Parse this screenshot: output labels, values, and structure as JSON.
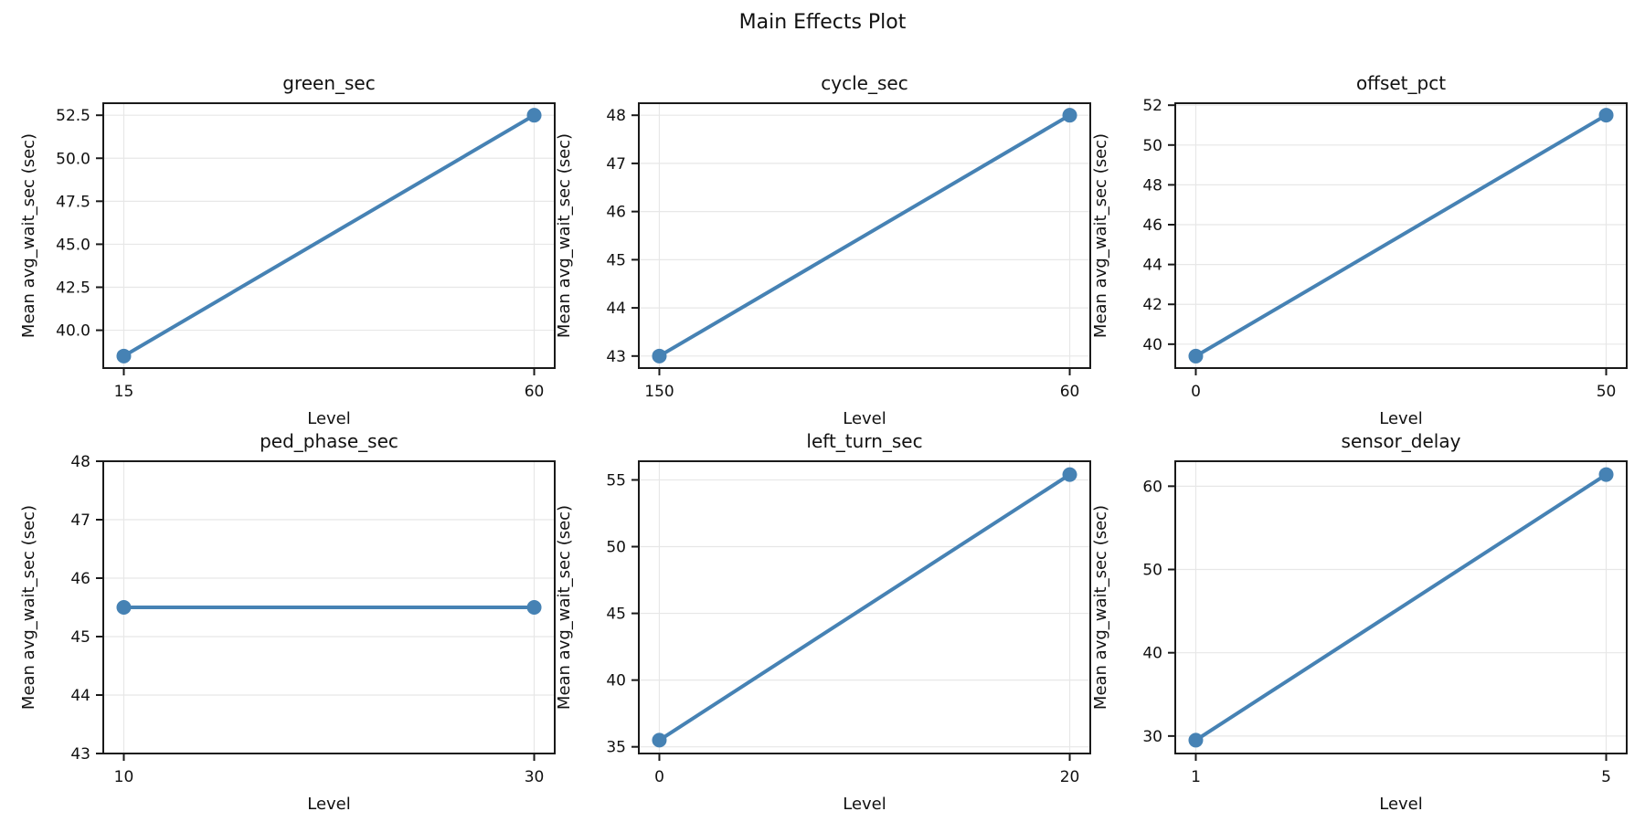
{
  "page": {
    "title": "Main Effects Plot"
  },
  "style": {
    "line_color": "#4682b4",
    "grid_color": "#e7e7e7",
    "spine_color": "#1a1a1a",
    "text_color": "#111111",
    "background": "#ffffff"
  },
  "chart_data": [
    {
      "type": "line",
      "title": "green_sec",
      "xlabel": "Level",
      "ylabel": "Mean avg_wait_sec (sec)",
      "categories": [
        "15",
        "60"
      ],
      "values": [
        38.5,
        52.5
      ],
      "ylim": [
        37.8,
        53.2
      ],
      "yticks": [
        40,
        42.5,
        45,
        47.5,
        50,
        52.5
      ],
      "ytick_labels": [
        "40.0",
        "42.5",
        "45.0",
        "47.5",
        "50.0",
        "52.5"
      ],
      "grid": true,
      "legend": null
    },
    {
      "type": "line",
      "title": "cycle_sec",
      "xlabel": "Level",
      "ylabel": "Mean avg_wait_sec (sec)",
      "categories": [
        "150",
        "60"
      ],
      "values": [
        43.0,
        48.0
      ],
      "ylim": [
        42.75,
        48.25
      ],
      "yticks": [
        43,
        44,
        45,
        46,
        47,
        48
      ],
      "ytick_labels": [
        "43",
        "44",
        "45",
        "46",
        "47",
        "48"
      ],
      "grid": true,
      "legend": null
    },
    {
      "type": "line",
      "title": "offset_pct",
      "xlabel": "Level",
      "ylabel": "Mean avg_wait_sec (sec)",
      "categories": [
        "0",
        "50"
      ],
      "values": [
        39.4,
        51.5
      ],
      "ylim": [
        38.8,
        52.1
      ],
      "yticks": [
        40,
        42,
        44,
        46,
        48,
        50,
        52
      ],
      "ytick_labels": [
        "40",
        "42",
        "44",
        "46",
        "48",
        "50",
        "52"
      ],
      "grid": true,
      "legend": null
    },
    {
      "type": "line",
      "title": "ped_phase_sec",
      "xlabel": "Level",
      "ylabel": "Mean avg_wait_sec (sec)",
      "categories": [
        "10",
        "30"
      ],
      "values": [
        45.5,
        45.5
      ],
      "ylim": [
        43,
        48
      ],
      "yticks": [
        43,
        44,
        45,
        46,
        47,
        48
      ],
      "ytick_labels": [
        "43",
        "44",
        "45",
        "46",
        "47",
        "48"
      ],
      "grid": true,
      "legend": null
    },
    {
      "type": "line",
      "title": "left_turn_sec",
      "xlabel": "Level",
      "ylabel": "Mean avg_wait_sec (sec)",
      "categories": [
        "0",
        "20"
      ],
      "values": [
        35.5,
        55.4
      ],
      "ylim": [
        34.5,
        56.4
      ],
      "yticks": [
        35,
        40,
        45,
        50,
        55
      ],
      "ytick_labels": [
        "35",
        "40",
        "45",
        "50",
        "55"
      ],
      "grid": true,
      "legend": null
    },
    {
      "type": "line",
      "title": "sensor_delay",
      "xlabel": "Level",
      "ylabel": "Mean avg_wait_sec (sec)",
      "categories": [
        "1",
        "5"
      ],
      "values": [
        29.5,
        61.4
      ],
      "ylim": [
        27.9,
        63.0
      ],
      "yticks": [
        30,
        40,
        50,
        60
      ],
      "ytick_labels": [
        "30",
        "40",
        "50",
        "60"
      ],
      "grid": true,
      "legend": null
    }
  ]
}
